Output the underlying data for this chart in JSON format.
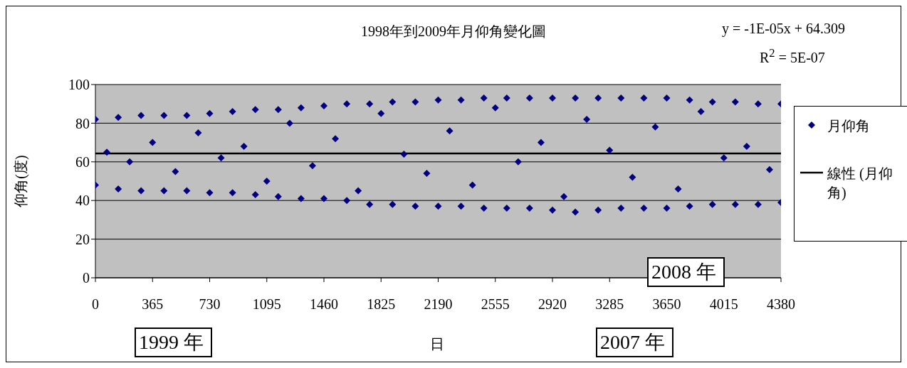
{
  "chart_data": {
    "type": "scatter",
    "title": "1998年到2009年月仰角變化圖",
    "xlabel": "日",
    "ylabel": "仰角(度)",
    "annotations": [
      "y = -1E-05x + 64.309",
      "R$^{2}$ = 5E-07",
      "1999 年",
      "2007 年",
      "2008 年"
    ],
    "series": [
      {
        "name": "月仰角",
        "color": "#000080",
        "marker": "diamond",
        "x": [
          0,
          146,
          292,
          438,
          584,
          730,
          876,
          1022,
          1168,
          1314,
          1460,
          1606,
          1752,
          1898,
          2044,
          2190,
          2336,
          2482,
          2628,
          2774,
          2920,
          3066,
          3212,
          3358,
          3504,
          3650,
          3796,
          3942,
          4088,
          4234,
          4380,
          0,
          146,
          292,
          438,
          584,
          730,
          876,
          1022,
          1168,
          1314,
          1460,
          1606,
          1752,
          1898,
          2044,
          2190,
          2336,
          2482,
          2628,
          2774,
          2920,
          3066,
          3212,
          3358,
          3504,
          3650,
          3796,
          3942,
          4088,
          4234,
          4380,
          73,
          219,
          365,
          511,
          657,
          803,
          949,
          1095,
          1241,
          1387,
          1533,
          1679,
          1825,
          1971,
          2117,
          2263,
          2409,
          2555,
          2701,
          2847,
          2993,
          3139,
          3285,
          3431,
          3577,
          3723,
          3869,
          4015,
          4161,
          4307
        ],
        "values": [
          82,
          83,
          84,
          84,
          84,
          85,
          86,
          87,
          87,
          88,
          89,
          90,
          90,
          91,
          91,
          92,
          92,
          93,
          93,
          93,
          93,
          93,
          93,
          93,
          93,
          93,
          92,
          91,
          91,
          90,
          90,
          48,
          46,
          45,
          45,
          45,
          44,
          44,
          43,
          42,
          41,
          41,
          40,
          38,
          38,
          37,
          37,
          37,
          36,
          36,
          36,
          35,
          34,
          35,
          36,
          36,
          36,
          37,
          38,
          38,
          38,
          39,
          65,
          60,
          70,
          55,
          75,
          62,
          68,
          50,
          80,
          58,
          72,
          45,
          85,
          64,
          54,
          76,
          48,
          88,
          60,
          70,
          42,
          82,
          66,
          52,
          78,
          46,
          86,
          62,
          68,
          56
        ]
      },
      {
        "name": "線性 (月仰角)",
        "type": "line",
        "color": "#000000",
        "x": [
          0,
          4380
        ],
        "values": [
          64.3,
          64.3
        ]
      }
    ],
    "xlim": [
      0,
      4380
    ],
    "xticks": [
      0,
      365,
      730,
      1095,
      1460,
      1825,
      2190,
      2555,
      2920,
      3285,
      3650,
      4015,
      4380
    ],
    "ylim": [
      0,
      100
    ],
    "yticks": [
      0,
      20,
      40,
      60,
      80,
      100
    ],
    "grid": "y",
    "legend": "right"
  }
}
